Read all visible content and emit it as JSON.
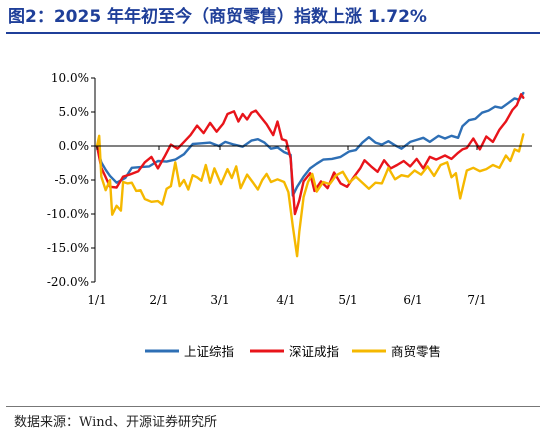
{
  "header": {
    "title": "图2：2025 年年初至今（商贸零售）指数上涨 1.72%"
  },
  "footer": {
    "source": "数据来源：Wind、开源证券研究所"
  },
  "colors": {
    "title": "#1f3f99",
    "sse": "#2e6fb5",
    "szse": "#e8141a",
    "retail": "#f5b800",
    "axis": "#000000"
  },
  "chart_data": {
    "type": "line",
    "title": "",
    "xlabel": "",
    "ylabel": "",
    "x_ticks": [
      "1/1",
      "2/1",
      "3/1",
      "4/1",
      "5/1",
      "6/1",
      "7/1"
    ],
    "y_ticks": [
      "10.0%",
      "5.0%",
      "0.0%",
      "-5.0%",
      "-10.0%",
      "-15.0%",
      "-20.0%"
    ],
    "ylim": [
      -20,
      10
    ],
    "legend_position": "bottom",
    "x_is_trading_day_index": false,
    "series": [
      {
        "name": "上证综指",
        "color": "#2e6fb5",
        "points": [
          [
            0,
            0
          ],
          [
            2,
            -2.4
          ],
          [
            4,
            -3.5
          ],
          [
            6,
            -4.4
          ],
          [
            9,
            -5.4
          ],
          [
            13,
            -4.7
          ],
          [
            16,
            -3.2
          ],
          [
            20,
            -3.1
          ],
          [
            24,
            -3.0
          ],
          [
            28,
            -2.2
          ],
          [
            32,
            -2.3
          ],
          [
            36,
            -2.0
          ],
          [
            40,
            -1.2
          ],
          [
            44,
            0.3
          ],
          [
            48,
            0.4
          ],
          [
            52,
            0.5
          ],
          [
            56,
            0.0
          ],
          [
            59,
            0.6
          ],
          [
            63,
            0.2
          ],
          [
            67,
            -0.1
          ],
          [
            71,
            0.8
          ],
          [
            74,
            1.0
          ],
          [
            77,
            0.5
          ],
          [
            80,
            -0.4
          ],
          [
            83,
            -0.2
          ],
          [
            86,
            -0.9
          ],
          [
            89,
            -1.3
          ],
          [
            90,
            -7.3
          ],
          [
            92,
            -6.0
          ],
          [
            95,
            -4.5
          ],
          [
            98,
            -3.3
          ],
          [
            101,
            -2.6
          ],
          [
            104,
            -2.0
          ],
          [
            108,
            -1.9
          ],
          [
            112,
            -1.6
          ],
          [
            116,
            -0.8
          ],
          [
            119,
            -0.6
          ],
          [
            122,
            0.5
          ],
          [
            125,
            1.3
          ],
          [
            128,
            0.5
          ],
          [
            131,
            0.2
          ],
          [
            134,
            0.7
          ],
          [
            137,
            0.1
          ],
          [
            140,
            -0.4
          ],
          [
            144,
            0.6
          ],
          [
            147,
            0.9
          ],
          [
            150,
            1.2
          ],
          [
            153,
            0.6
          ],
          [
            157,
            1.5
          ],
          [
            160,
            1.1
          ],
          [
            163,
            1.5
          ],
          [
            166,
            1.2
          ],
          [
            168,
            2.9
          ],
          [
            171,
            3.8
          ],
          [
            174,
            4.0
          ],
          [
            177,
            4.9
          ],
          [
            180,
            5.2
          ],
          [
            183,
            5.8
          ],
          [
            186,
            5.6
          ],
          [
            189,
            6.3
          ],
          [
            192,
            7.0
          ],
          [
            194,
            6.8
          ],
          [
            196,
            7.8
          ]
        ]
      },
      {
        "name": "深证成指",
        "color": "#e8141a",
        "points": [
          [
            0,
            0
          ],
          [
            2,
            -3.2
          ],
          [
            4,
            -4.6
          ],
          [
            6,
            -6.0
          ],
          [
            9,
            -6.1
          ],
          [
            12,
            -4.5
          ],
          [
            15,
            -4.2
          ],
          [
            19,
            -3.7
          ],
          [
            22,
            -2.4
          ],
          [
            25,
            -1.6
          ],
          [
            28,
            -3.3
          ],
          [
            31,
            -1.6
          ],
          [
            34,
            0.2
          ],
          [
            37,
            -0.4
          ],
          [
            40,
            0.6
          ],
          [
            43,
            1.6
          ],
          [
            46,
            3.0
          ],
          [
            49,
            1.9
          ],
          [
            52,
            3.4
          ],
          [
            55,
            2.1
          ],
          [
            58,
            3.3
          ],
          [
            60,
            4.7
          ],
          [
            63,
            5.1
          ],
          [
            65,
            3.6
          ],
          [
            67,
            4.7
          ],
          [
            69,
            3.9
          ],
          [
            71,
            4.9
          ],
          [
            73,
            5.2
          ],
          [
            75,
            4.4
          ],
          [
            78,
            3.2
          ],
          [
            81,
            1.6
          ],
          [
            83,
            3.6
          ],
          [
            85,
            1.0
          ],
          [
            87,
            0.8
          ],
          [
            89,
            -1.8
          ],
          [
            91,
            -10.0
          ],
          [
            93,
            -8.0
          ],
          [
            95,
            -5.2
          ],
          [
            98,
            -4.0
          ],
          [
            100,
            -6.6
          ],
          [
            103,
            -5.2
          ],
          [
            106,
            -6.2
          ],
          [
            109,
            -3.9
          ],
          [
            112,
            -5.5
          ],
          [
            115,
            -6.0
          ],
          [
            118,
            -4.6
          ],
          [
            121,
            -3.3
          ],
          [
            123,
            -2.1
          ],
          [
            126,
            -3.0
          ],
          [
            129,
            -3.8
          ],
          [
            132,
            -2.1
          ],
          [
            135,
            -3.3
          ],
          [
            138,
            -2.8
          ],
          [
            141,
            -2.2
          ],
          [
            144,
            -3.0
          ],
          [
            147,
            -1.9
          ],
          [
            150,
            -3.3
          ],
          [
            153,
            -1.6
          ],
          [
            156,
            -2.0
          ],
          [
            160,
            -1.4
          ],
          [
            163,
            -1.9
          ],
          [
            166,
            -1.0
          ],
          [
            168,
            -0.5
          ],
          [
            170,
            -0.3
          ],
          [
            173,
            1.1
          ],
          [
            176,
            -0.5
          ],
          [
            179,
            1.4
          ],
          [
            182,
            0.6
          ],
          [
            185,
            2.4
          ],
          [
            188,
            3.6
          ],
          [
            191,
            5.3
          ],
          [
            193,
            6.0
          ],
          [
            195,
            7.6
          ],
          [
            196,
            7.1
          ]
        ]
      },
      {
        "name": "商贸零售",
        "color": "#f5b800",
        "points": [
          [
            0,
            0
          ],
          [
            1,
            1.5
          ],
          [
            2,
            -4.5
          ],
          [
            4,
            -6.5
          ],
          [
            6,
            -5.0
          ],
          [
            7,
            -10.1
          ],
          [
            9,
            -8.8
          ],
          [
            11,
            -9.5
          ],
          [
            12,
            -5.3
          ],
          [
            14,
            -5.5
          ],
          [
            16,
            -5.4
          ],
          [
            18,
            -6.6
          ],
          [
            20,
            -6.5
          ],
          [
            22,
            -7.8
          ],
          [
            25,
            -8.2
          ],
          [
            28,
            -8.1
          ],
          [
            30,
            -8.6
          ],
          [
            32,
            -6.3
          ],
          [
            34,
            -5.9
          ],
          [
            36,
            -2.4
          ],
          [
            38,
            -5.9
          ],
          [
            40,
            -5.0
          ],
          [
            42,
            -6.4
          ],
          [
            44,
            -4.3
          ],
          [
            46,
            -4.6
          ],
          [
            48,
            -5.1
          ],
          [
            50,
            -2.8
          ],
          [
            52,
            -5.4
          ],
          [
            54,
            -3.3
          ],
          [
            57,
            -5.6
          ],
          [
            60,
            -3.4
          ],
          [
            62,
            -4.7
          ],
          [
            64,
            -3.0
          ],
          [
            66,
            -6.2
          ],
          [
            69,
            -4.2
          ],
          [
            72,
            -5.5
          ],
          [
            74,
            -6.4
          ],
          [
            76,
            -5.0
          ],
          [
            78,
            -4.1
          ],
          [
            80,
            -5.3
          ],
          [
            83,
            -4.9
          ],
          [
            86,
            -5.3
          ],
          [
            88,
            -6.8
          ],
          [
            90,
            -11.8
          ],
          [
            92,
            -16.2
          ],
          [
            93,
            -12.6
          ],
          [
            95,
            -7.5
          ],
          [
            97,
            -5.3
          ],
          [
            99,
            -4.1
          ],
          [
            101,
            -6.7
          ],
          [
            104,
            -5.3
          ],
          [
            107,
            -5.6
          ],
          [
            110,
            -4.3
          ],
          [
            113,
            -3.8
          ],
          [
            116,
            -5.4
          ],
          [
            119,
            -4.5
          ],
          [
            122,
            -5.4
          ],
          [
            125,
            -6.3
          ],
          [
            128,
            -5.4
          ],
          [
            131,
            -5.5
          ],
          [
            134,
            -3.2
          ],
          [
            137,
            -4.9
          ],
          [
            140,
            -4.3
          ],
          [
            143,
            -4.5
          ],
          [
            146,
            -3.6
          ],
          [
            149,
            -4.2
          ],
          [
            152,
            -3.0
          ],
          [
            155,
            -4.4
          ],
          [
            158,
            -2.8
          ],
          [
            161,
            -2.4
          ],
          [
            163,
            -4.6
          ],
          [
            165,
            -4.0
          ],
          [
            167,
            -7.7
          ],
          [
            170,
            -3.6
          ],
          [
            173,
            -3.2
          ],
          [
            176,
            -3.7
          ],
          [
            179,
            -3.4
          ],
          [
            182,
            -2.8
          ],
          [
            185,
            -3.2
          ],
          [
            188,
            -1.4
          ],
          [
            190,
            -2.2
          ],
          [
            192,
            -0.5
          ],
          [
            194,
            -0.8
          ],
          [
            196,
            1.7
          ]
        ]
      }
    ]
  }
}
